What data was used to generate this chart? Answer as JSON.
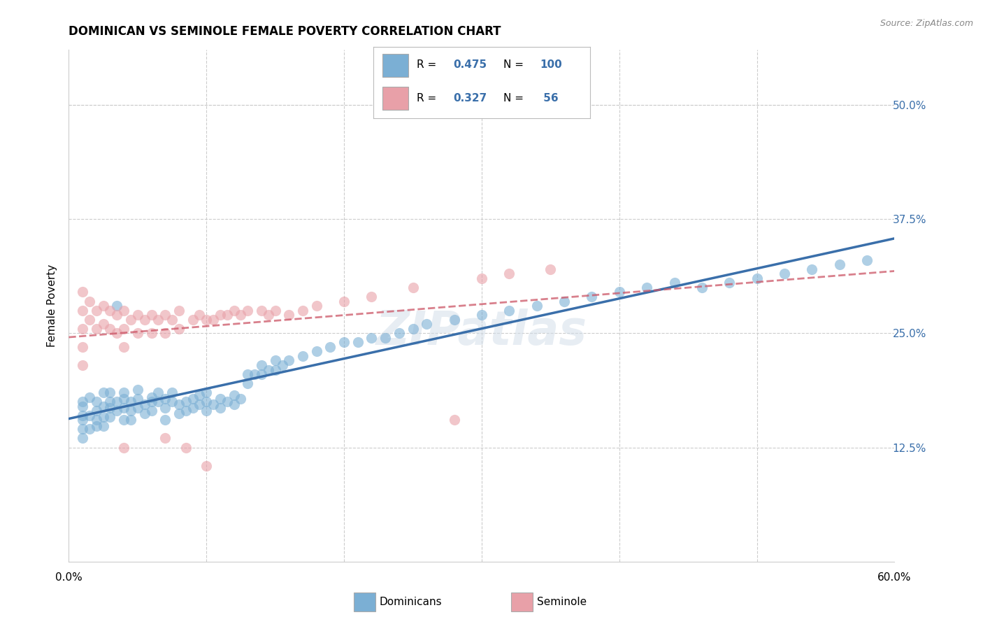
{
  "title": "DOMINICAN VS SEMINOLE FEMALE POVERTY CORRELATION CHART",
  "source": "Source: ZipAtlas.com",
  "ylabel": "Female Poverty",
  "ytick_labels": [
    "12.5%",
    "25.0%",
    "37.5%",
    "50.0%"
  ],
  "ytick_values": [
    0.125,
    0.25,
    0.375,
    0.5
  ],
  "xlim": [
    0.0,
    0.6
  ],
  "ylim": [
    0.0,
    0.56
  ],
  "dominican_color": "#7bafd4",
  "seminole_color": "#e8a0a8",
  "dominican_line_color": "#3a6faa",
  "seminole_line_color": "#cc5566",
  "watermark": "ZIPatlas",
  "legend_labels": [
    "Dominicans",
    "Seminole"
  ],
  "dominican_points": [
    [
      0.01,
      0.175
    ],
    [
      0.01,
      0.16
    ],
    [
      0.01,
      0.155
    ],
    [
      0.01,
      0.145
    ],
    [
      0.01,
      0.135
    ],
    [
      0.01,
      0.17
    ],
    [
      0.015,
      0.18
    ],
    [
      0.015,
      0.16
    ],
    [
      0.015,
      0.145
    ],
    [
      0.02,
      0.175
    ],
    [
      0.02,
      0.165
    ],
    [
      0.02,
      0.155
    ],
    [
      0.02,
      0.148
    ],
    [
      0.025,
      0.185
    ],
    [
      0.025,
      0.17
    ],
    [
      0.025,
      0.158
    ],
    [
      0.025,
      0.148
    ],
    [
      0.03,
      0.175
    ],
    [
      0.03,
      0.168
    ],
    [
      0.03,
      0.158
    ],
    [
      0.03,
      0.185
    ],
    [
      0.035,
      0.175
    ],
    [
      0.035,
      0.165
    ],
    [
      0.035,
      0.28
    ],
    [
      0.04,
      0.178
    ],
    [
      0.04,
      0.168
    ],
    [
      0.04,
      0.185
    ],
    [
      0.04,
      0.155
    ],
    [
      0.045,
      0.175
    ],
    [
      0.045,
      0.165
    ],
    [
      0.045,
      0.155
    ],
    [
      0.05,
      0.168
    ],
    [
      0.05,
      0.178
    ],
    [
      0.05,
      0.188
    ],
    [
      0.055,
      0.172
    ],
    [
      0.055,
      0.162
    ],
    [
      0.06,
      0.175
    ],
    [
      0.06,
      0.165
    ],
    [
      0.06,
      0.18
    ],
    [
      0.065,
      0.175
    ],
    [
      0.065,
      0.185
    ],
    [
      0.07,
      0.168
    ],
    [
      0.07,
      0.178
    ],
    [
      0.07,
      0.155
    ],
    [
      0.075,
      0.175
    ],
    [
      0.075,
      0.185
    ],
    [
      0.08,
      0.172
    ],
    [
      0.08,
      0.162
    ],
    [
      0.085,
      0.175
    ],
    [
      0.085,
      0.165
    ],
    [
      0.09,
      0.178
    ],
    [
      0.09,
      0.168
    ],
    [
      0.095,
      0.172
    ],
    [
      0.095,
      0.182
    ],
    [
      0.1,
      0.175
    ],
    [
      0.1,
      0.165
    ],
    [
      0.1,
      0.185
    ],
    [
      0.105,
      0.172
    ],
    [
      0.11,
      0.178
    ],
    [
      0.11,
      0.168
    ],
    [
      0.115,
      0.175
    ],
    [
      0.12,
      0.182
    ],
    [
      0.12,
      0.172
    ],
    [
      0.125,
      0.178
    ],
    [
      0.13,
      0.205
    ],
    [
      0.13,
      0.195
    ],
    [
      0.135,
      0.205
    ],
    [
      0.14,
      0.215
    ],
    [
      0.14,
      0.205
    ],
    [
      0.145,
      0.21
    ],
    [
      0.15,
      0.22
    ],
    [
      0.15,
      0.21
    ],
    [
      0.155,
      0.215
    ],
    [
      0.16,
      0.22
    ],
    [
      0.17,
      0.225
    ],
    [
      0.18,
      0.23
    ],
    [
      0.19,
      0.235
    ],
    [
      0.2,
      0.24
    ],
    [
      0.21,
      0.24
    ],
    [
      0.22,
      0.245
    ],
    [
      0.23,
      0.245
    ],
    [
      0.24,
      0.25
    ],
    [
      0.25,
      0.255
    ],
    [
      0.26,
      0.26
    ],
    [
      0.28,
      0.265
    ],
    [
      0.3,
      0.27
    ],
    [
      0.32,
      0.275
    ],
    [
      0.34,
      0.28
    ],
    [
      0.36,
      0.285
    ],
    [
      0.38,
      0.29
    ],
    [
      0.4,
      0.295
    ],
    [
      0.42,
      0.3
    ],
    [
      0.44,
      0.305
    ],
    [
      0.46,
      0.3
    ],
    [
      0.48,
      0.305
    ],
    [
      0.5,
      0.31
    ],
    [
      0.52,
      0.315
    ],
    [
      0.54,
      0.32
    ],
    [
      0.56,
      0.325
    ],
    [
      0.58,
      0.33
    ]
  ],
  "seminole_points": [
    [
      0.01,
      0.295
    ],
    [
      0.01,
      0.275
    ],
    [
      0.01,
      0.255
    ],
    [
      0.01,
      0.235
    ],
    [
      0.01,
      0.215
    ],
    [
      0.015,
      0.285
    ],
    [
      0.015,
      0.265
    ],
    [
      0.02,
      0.275
    ],
    [
      0.02,
      0.255
    ],
    [
      0.025,
      0.28
    ],
    [
      0.025,
      0.26
    ],
    [
      0.03,
      0.275
    ],
    [
      0.03,
      0.255
    ],
    [
      0.035,
      0.27
    ],
    [
      0.035,
      0.25
    ],
    [
      0.04,
      0.275
    ],
    [
      0.04,
      0.255
    ],
    [
      0.04,
      0.235
    ],
    [
      0.04,
      0.125
    ],
    [
      0.045,
      0.265
    ],
    [
      0.05,
      0.27
    ],
    [
      0.05,
      0.25
    ],
    [
      0.055,
      0.265
    ],
    [
      0.06,
      0.27
    ],
    [
      0.06,
      0.25
    ],
    [
      0.065,
      0.265
    ],
    [
      0.07,
      0.27
    ],
    [
      0.07,
      0.25
    ],
    [
      0.07,
      0.135
    ],
    [
      0.075,
      0.265
    ],
    [
      0.08,
      0.275
    ],
    [
      0.08,
      0.255
    ],
    [
      0.085,
      0.125
    ],
    [
      0.09,
      0.265
    ],
    [
      0.095,
      0.27
    ],
    [
      0.1,
      0.265
    ],
    [
      0.1,
      0.105
    ],
    [
      0.105,
      0.265
    ],
    [
      0.11,
      0.27
    ],
    [
      0.115,
      0.27
    ],
    [
      0.12,
      0.275
    ],
    [
      0.125,
      0.27
    ],
    [
      0.13,
      0.275
    ],
    [
      0.14,
      0.275
    ],
    [
      0.145,
      0.27
    ],
    [
      0.15,
      0.275
    ],
    [
      0.16,
      0.27
    ],
    [
      0.17,
      0.275
    ],
    [
      0.18,
      0.28
    ],
    [
      0.2,
      0.285
    ],
    [
      0.22,
      0.29
    ],
    [
      0.25,
      0.3
    ],
    [
      0.28,
      0.155
    ],
    [
      0.3,
      0.31
    ],
    [
      0.32,
      0.315
    ],
    [
      0.35,
      0.32
    ]
  ],
  "dom_line_x": [
    0.0,
    0.6
  ],
  "dom_line_y": [
    0.163,
    0.335
  ],
  "sem_line_x": [
    0.0,
    0.6
  ],
  "sem_line_y": [
    0.215,
    0.405
  ]
}
